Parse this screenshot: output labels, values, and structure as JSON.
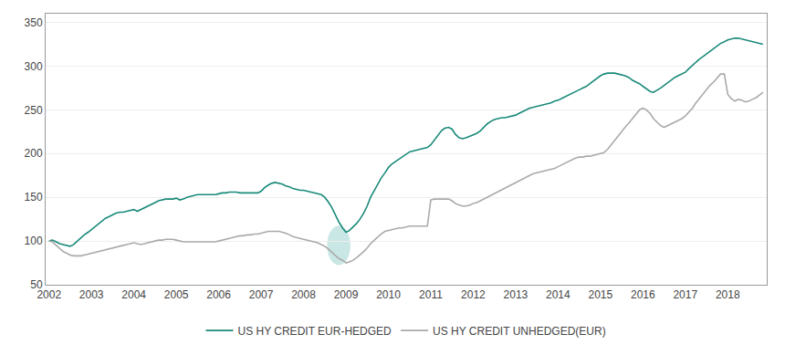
{
  "chart_data": {
    "type": "line",
    "x": [
      2002.0,
      2002.08,
      2002.17,
      2002.25,
      2002.33,
      2002.42,
      2002.5,
      2002.58,
      2002.67,
      2002.75,
      2002.83,
      2002.92,
      2003.0,
      2003.08,
      2003.17,
      2003.25,
      2003.33,
      2003.42,
      2003.5,
      2003.58,
      2003.67,
      2003.75,
      2003.83,
      2003.92,
      2004.0,
      2004.08,
      2004.17,
      2004.25,
      2004.33,
      2004.42,
      2004.5,
      2004.58,
      2004.67,
      2004.75,
      2004.83,
      2004.92,
      2005.0,
      2005.08,
      2005.17,
      2005.25,
      2005.33,
      2005.42,
      2005.5,
      2005.58,
      2005.67,
      2005.75,
      2005.83,
      2005.92,
      2006.0,
      2006.08,
      2006.17,
      2006.25,
      2006.33,
      2006.42,
      2006.5,
      2006.58,
      2006.67,
      2006.75,
      2006.83,
      2006.92,
      2007.0,
      2007.08,
      2007.17,
      2007.25,
      2007.33,
      2007.42,
      2007.5,
      2007.58,
      2007.67,
      2007.75,
      2007.83,
      2007.92,
      2008.0,
      2008.08,
      2008.17,
      2008.25,
      2008.33,
      2008.42,
      2008.5,
      2008.58,
      2008.67,
      2008.75,
      2008.83,
      2008.92,
      2009.0,
      2009.08,
      2009.17,
      2009.25,
      2009.33,
      2009.42,
      2009.5,
      2009.58,
      2009.67,
      2009.75,
      2009.83,
      2009.92,
      2010.0,
      2010.08,
      2010.17,
      2010.25,
      2010.33,
      2010.42,
      2010.5,
      2010.58,
      2010.67,
      2010.75,
      2010.83,
      2010.92,
      2011.0,
      2011.08,
      2011.17,
      2011.25,
      2011.33,
      2011.42,
      2011.5,
      2011.58,
      2011.67,
      2011.75,
      2011.83,
      2011.92,
      2012.0,
      2012.08,
      2012.17,
      2012.25,
      2012.33,
      2012.42,
      2012.5,
      2012.58,
      2012.67,
      2012.75,
      2012.83,
      2012.92,
      2013.0,
      2013.08,
      2013.17,
      2013.25,
      2013.33,
      2013.42,
      2013.5,
      2013.58,
      2013.67,
      2013.75,
      2013.83,
      2013.92,
      2014.0,
      2014.08,
      2014.17,
      2014.25,
      2014.33,
      2014.42,
      2014.5,
      2014.58,
      2014.67,
      2014.75,
      2014.83,
      2014.92,
      2015.0,
      2015.08,
      2015.17,
      2015.25,
      2015.33,
      2015.42,
      2015.5,
      2015.58,
      2015.67,
      2015.75,
      2015.83,
      2015.92,
      2016.0,
      2016.08,
      2016.17,
      2016.25,
      2016.33,
      2016.42,
      2016.5,
      2016.58,
      2016.67,
      2016.75,
      2016.83,
      2016.92,
      2017.0,
      2017.08,
      2017.17,
      2017.25,
      2017.33,
      2017.42,
      2017.5,
      2017.58,
      2017.67,
      2017.75,
      2017.83,
      2017.92,
      2018.0,
      2018.08,
      2018.17,
      2018.25,
      2018.33,
      2018.42,
      2018.5,
      2018.58,
      2018.67,
      2018.75,
      2018.83
    ],
    "series": [
      {
        "name": "US HY CREDIT EUR-HEDGED",
        "color": "#1a8a7a",
        "values": [
          100,
          101,
          99,
          97,
          96,
          95,
          94,
          96,
          100,
          103,
          107,
          110,
          113,
          116,
          120,
          123,
          126,
          128,
          130,
          132,
          133,
          133,
          134,
          135,
          136,
          134,
          136,
          138,
          140,
          142,
          144,
          146,
          147,
          148,
          148,
          148,
          149,
          147,
          148,
          150,
          151,
          152,
          153,
          153,
          153,
          153,
          153,
          153,
          154,
          155,
          155,
          156,
          156,
          156,
          155,
          155,
          155,
          155,
          155,
          155,
          157,
          161,
          164,
          166,
          167,
          166,
          165,
          163,
          162,
          160,
          159,
          158,
          158,
          157,
          156,
          155,
          154,
          153,
          150,
          145,
          138,
          130,
          122,
          115,
          110,
          112,
          116,
          120,
          125,
          132,
          140,
          150,
          158,
          165,
          172,
          178,
          184,
          188,
          191,
          194,
          197,
          200,
          202,
          203,
          204,
          205,
          206,
          207,
          210,
          215,
          220,
          226,
          229,
          230,
          228,
          222,
          218,
          217,
          218,
          220,
          221,
          223,
          226,
          230,
          234,
          237,
          239,
          240,
          241,
          241,
          242,
          243,
          244,
          246,
          248,
          250,
          252,
          253,
          254,
          255,
          256,
          257,
          258,
          260,
          261,
          263,
          265,
          267,
          269,
          271,
          273,
          275,
          277,
          280,
          283,
          286,
          289,
          291,
          292,
          292,
          292,
          291,
          290,
          289,
          287,
          284,
          282,
          280,
          277,
          274,
          271,
          270,
          272,
          275,
          278,
          281,
          284,
          287,
          289,
          291,
          293,
          297,
          301,
          305,
          308,
          311,
          314,
          317,
          320,
          323,
          326,
          328,
          330,
          331,
          332,
          332,
          331,
          330,
          329,
          328,
          327,
          326,
          325
        ]
      },
      {
        "name": "US HY CREDIT UNHEDGED(EUR)",
        "color": "#aaaaaa",
        "values": [
          100,
          99,
          95,
          91,
          88,
          86,
          84,
          83,
          83,
          83,
          84,
          85,
          86,
          87,
          88,
          89,
          90,
          91,
          92,
          93,
          94,
          95,
          96,
          97,
          98,
          97,
          96,
          97,
          98,
          99,
          100,
          101,
          101,
          102,
          102,
          102,
          101,
          100,
          99,
          99,
          99,
          99,
          99,
          99,
          99,
          99,
          99,
          99,
          100,
          101,
          102,
          103,
          104,
          105,
          106,
          106,
          107,
          107,
          108,
          108,
          109,
          110,
          111,
          111,
          111,
          111,
          110,
          109,
          107,
          105,
          104,
          103,
          102,
          101,
          100,
          99,
          98,
          96,
          94,
          91,
          87,
          83,
          80,
          78,
          75,
          76,
          78,
          81,
          84,
          88,
          92,
          97,
          101,
          105,
          108,
          111,
          112,
          113,
          114,
          115,
          115,
          116,
          117,
          117,
          117,
          117,
          117,
          117,
          147,
          148,
          148,
          148,
          148,
          148,
          146,
          143,
          141,
          140,
          140,
          141,
          143,
          144,
          146,
          148,
          150,
          153,
          155,
          157,
          159,
          161,
          163,
          165,
          167,
          169,
          171,
          173,
          175,
          177,
          178,
          179,
          180,
          181,
          182,
          183,
          185,
          187,
          189,
          191,
          193,
          195,
          196,
          196,
          197,
          197,
          198,
          199,
          200,
          201,
          205,
          210,
          215,
          220,
          225,
          230,
          235,
          240,
          245,
          250,
          252,
          250,
          246,
          240,
          236,
          232,
          230,
          232,
          234,
          236,
          238,
          240,
          243,
          247,
          252,
          258,
          263,
          268,
          273,
          278,
          282,
          287,
          291,
          291,
          268,
          263,
          260,
          262,
          261,
          259,
          260,
          262,
          264,
          267,
          270
        ]
      }
    ],
    "highlight": {
      "x": 2008.83,
      "y": 95,
      "width": 0.55,
      "height": 45,
      "color": "#9dd4ce"
    },
    "xlim": [
      2001.92,
      2018.92
    ],
    "xticks": [
      2002,
      2003,
      2004,
      2005,
      2006,
      2007,
      2008,
      2009,
      2010,
      2011,
      2012,
      2013,
      2014,
      2015,
      2016,
      2017,
      2018
    ],
    "ylim": [
      50,
      360
    ],
    "yticks": [
      50,
      100,
      150,
      200,
      250,
      300,
      350
    ],
    "grid": true,
    "legend": "lower center"
  }
}
